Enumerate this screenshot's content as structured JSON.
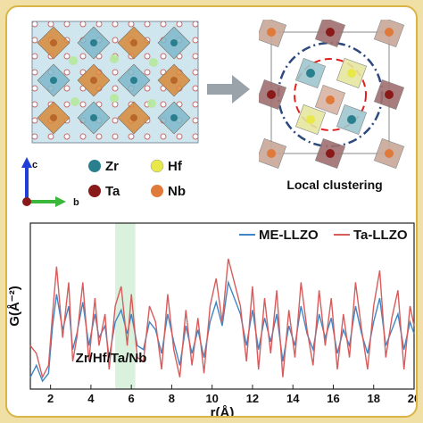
{
  "structure_panel": {
    "axes": {
      "c": "c",
      "b": "b"
    },
    "legend": [
      {
        "symbol": "Zr",
        "color": "#2a7f8e"
      },
      {
        "symbol": "Hf",
        "color": "#e8e84a"
      },
      {
        "symbol": "Ta",
        "color": "#8a1a1a"
      },
      {
        "symbol": "Nb",
        "color": "#e07a3a"
      }
    ]
  },
  "cluster_panel": {
    "caption": "Local clustering"
  },
  "chart_data": {
    "type": "line",
    "xlabel": "r(Å)",
    "ylabel": "G(Å⁻²)",
    "xlim": [
      1,
      20
    ],
    "xticks": [
      2,
      4,
      6,
      8,
      10,
      12,
      14,
      16,
      18,
      20
    ],
    "legend_position": "top-right",
    "annotation": {
      "text": "Zr/Hf/Ta/Nb",
      "band": [
        5.2,
        6.2
      ]
    },
    "series": [
      {
        "name": "ME-LLZO",
        "color": "#3f86c4",
        "x": [
          1.0,
          1.3,
          1.6,
          1.9,
          2.1,
          2.3,
          2.6,
          2.9,
          3.1,
          3.3,
          3.6,
          3.9,
          4.2,
          4.4,
          4.7,
          4.9,
          5.2,
          5.5,
          5.8,
          6.0,
          6.3,
          6.6,
          6.9,
          7.2,
          7.5,
          7.8,
          8.1,
          8.4,
          8.7,
          9.0,
          9.3,
          9.6,
          9.9,
          10.2,
          10.5,
          10.8,
          11.1,
          11.4,
          11.7,
          12.0,
          12.3,
          12.6,
          12.9,
          13.2,
          13.5,
          13.8,
          14.1,
          14.4,
          14.7,
          15.0,
          15.3,
          15.6,
          15.9,
          16.2,
          16.5,
          16.8,
          17.1,
          17.4,
          17.7,
          18.0,
          18.3,
          18.6,
          18.9,
          19.2,
          19.5,
          19.8,
          20.0
        ],
        "values": [
          0.2,
          0.5,
          0.1,
          0.3,
          1.5,
          2.3,
          1.4,
          2.0,
          0.9,
          1.3,
          2.1,
          1.0,
          1.8,
          1.2,
          1.5,
          0.7,
          1.6,
          1.9,
          1.3,
          1.8,
          1.0,
          0.9,
          1.6,
          1.4,
          0.8,
          1.8,
          1.1,
          0.5,
          1.5,
          0.8,
          1.4,
          0.7,
          1.6,
          2.1,
          1.5,
          2.6,
          2.2,
          1.8,
          1.0,
          1.9,
          0.9,
          1.7,
          1.1,
          1.8,
          0.6,
          1.5,
          1.0,
          2.0,
          1.3,
          0.9,
          1.8,
          1.2,
          1.7,
          0.8,
          1.4,
          1.0,
          2.0,
          1.3,
          0.8,
          1.6,
          2.2,
          1.0,
          1.4,
          1.8,
          0.9,
          1.6,
          1.3
        ]
      },
      {
        "name": "Ta-LLZO",
        "color": "#d85c5c",
        "x": [
          1.0,
          1.3,
          1.6,
          1.9,
          2.1,
          2.3,
          2.6,
          2.9,
          3.1,
          3.3,
          3.6,
          3.9,
          4.2,
          4.4,
          4.7,
          4.9,
          5.2,
          5.5,
          5.8,
          6.0,
          6.3,
          6.6,
          6.9,
          7.2,
          7.5,
          7.8,
          8.1,
          8.4,
          8.7,
          9.0,
          9.3,
          9.6,
          9.9,
          10.2,
          10.5,
          10.8,
          11.1,
          11.4,
          11.7,
          12.0,
          12.3,
          12.6,
          12.9,
          13.2,
          13.5,
          13.8,
          14.1,
          14.4,
          14.7,
          15.0,
          15.3,
          15.6,
          15.9,
          16.2,
          16.5,
          16.8,
          17.1,
          17.4,
          17.7,
          18.0,
          18.3,
          18.6,
          18.9,
          19.2,
          19.5,
          19.8,
          20.0
        ],
        "values": [
          1.0,
          0.8,
          0.2,
          0.5,
          1.8,
          3.0,
          1.2,
          2.6,
          0.6,
          1.2,
          2.6,
          0.6,
          2.2,
          1.0,
          1.8,
          0.4,
          2.0,
          2.5,
          1.0,
          2.3,
          0.7,
          0.6,
          2.0,
          1.6,
          0.4,
          2.3,
          0.9,
          0.2,
          1.9,
          0.5,
          1.7,
          0.3,
          2.0,
          2.7,
          1.6,
          3.2,
          2.6,
          2.0,
          0.6,
          2.5,
          0.4,
          2.2,
          0.8,
          2.4,
          0.2,
          1.9,
          0.7,
          2.6,
          1.4,
          0.5,
          2.4,
          1.0,
          2.2,
          0.4,
          1.8,
          0.7,
          2.6,
          1.4,
          0.4,
          2.0,
          2.9,
          0.7,
          1.7,
          2.4,
          0.4,
          2.0,
          1.5
        ]
      }
    ]
  }
}
